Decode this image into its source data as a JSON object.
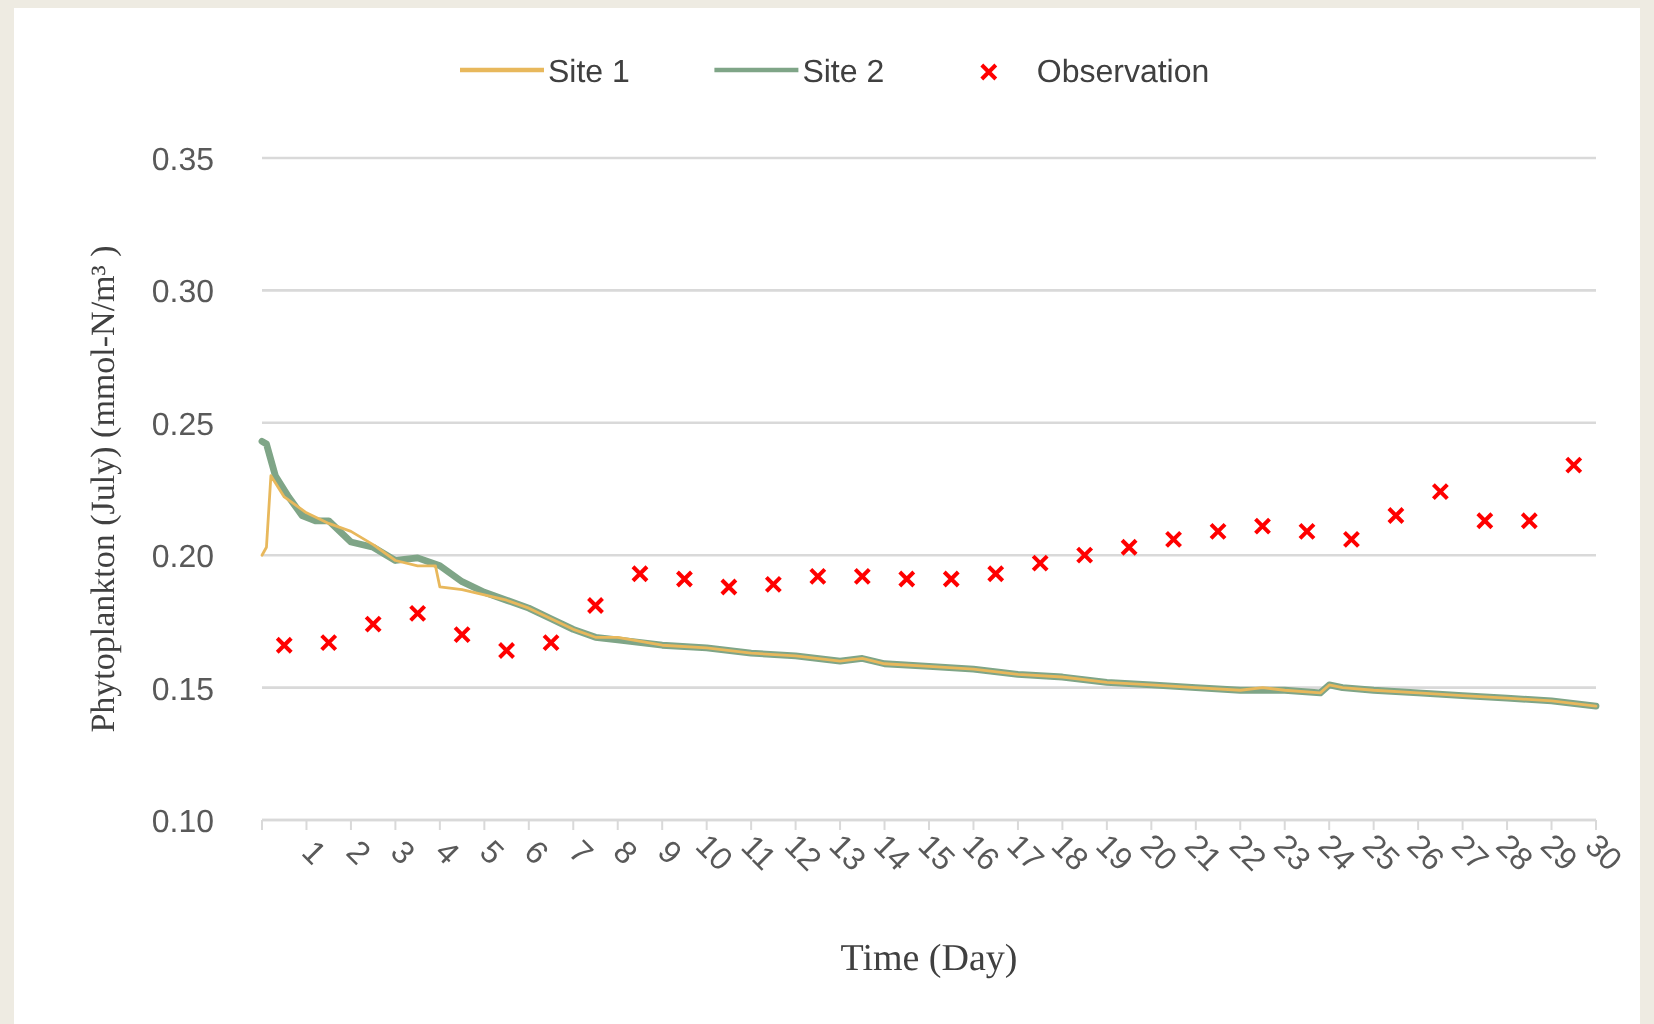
{
  "chart_data": {
    "type": "line",
    "xlabel": "Time (Day)",
    "ylabel": "Phytoplankton (July) (mmol-N/m³ )",
    "xlim": [
      0,
      30
    ],
    "xticks": [
      {
        "value": 0,
        "label": null
      },
      1,
      2,
      3,
      4,
      5,
      6,
      7,
      8,
      9,
      10,
      11,
      12,
      13,
      14,
      15,
      16,
      17,
      18,
      19,
      20,
      21,
      22,
      23,
      24,
      25,
      26,
      27,
      28,
      29,
      30
    ],
    "ylim": [
      0.1,
      0.35
    ],
    "yticks": [
      {
        "value": 0.1,
        "label": "0.10"
      },
      {
        "value": 0.15,
        "label": "0.15"
      },
      {
        "value": 0.2,
        "label": "0.20"
      },
      {
        "value": 0.25,
        "label": "0.25"
      },
      {
        "value": 0.3,
        "label": "0.30"
      },
      {
        "value": 0.35,
        "label": "0.35"
      }
    ],
    "grid": "y",
    "legend": "top",
    "series": [
      {
        "name": "Site 1",
        "color": "#e8b85c",
        "marker": "none",
        "x": [
          0,
          0.1,
          0.2,
          0.5,
          1,
          1.5,
          2,
          2.5,
          3,
          3.5,
          3.9,
          4,
          4.5,
          5,
          5.5,
          6,
          6.5,
          7,
          7.5,
          8,
          9,
          10,
          11,
          12,
          13,
          13.5,
          14,
          15,
          16,
          17,
          18,
          19,
          20,
          21,
          22,
          22.5,
          23,
          23.8,
          24,
          24.3,
          25,
          26,
          27,
          28,
          29,
          30
        ],
        "values": [
          0.2,
          0.203,
          0.23,
          0.222,
          0.216,
          0.212,
          0.209,
          0.204,
          0.198,
          0.196,
          0.196,
          0.188,
          0.187,
          0.185,
          0.183,
          0.18,
          0.176,
          0.172,
          0.169,
          0.169,
          0.166,
          0.165,
          0.163,
          0.162,
          0.16,
          0.161,
          0.159,
          0.158,
          0.157,
          0.155,
          0.154,
          0.152,
          0.151,
          0.15,
          0.149,
          0.15,
          0.149,
          0.148,
          0.151,
          0.15,
          0.149,
          0.148,
          0.147,
          0.146,
          0.145,
          0.143
        ]
      },
      {
        "name": "Site 2",
        "color": "#7fa587",
        "marker": "none",
        "x": [
          0,
          0.1,
          0.3,
          0.6,
          0.9,
          1.2,
          1.5,
          2,
          2.5,
          3,
          3.5,
          4,
          4.5,
          5,
          5.5,
          6,
          6.5,
          7,
          7.5,
          8,
          9,
          10,
          11,
          12,
          13,
          13.5,
          14,
          15,
          16,
          17,
          18,
          19,
          20,
          21,
          22,
          23,
          23.8,
          24,
          24.3,
          25,
          26,
          27,
          28,
          29,
          30
        ],
        "values": [
          0.243,
          0.242,
          0.23,
          0.222,
          0.215,
          0.213,
          0.213,
          0.205,
          0.203,
          0.198,
          0.199,
          0.196,
          0.19,
          0.186,
          0.183,
          0.18,
          0.176,
          0.172,
          0.169,
          0.168,
          0.166,
          0.165,
          0.163,
          0.162,
          0.16,
          0.161,
          0.159,
          0.158,
          0.157,
          0.155,
          0.154,
          0.152,
          0.151,
          0.15,
          0.149,
          0.149,
          0.148,
          0.151,
          0.15,
          0.149,
          0.148,
          0.147,
          0.146,
          0.145,
          0.143
        ]
      },
      {
        "name": "Observation",
        "color": "#ff0000",
        "type": "scatter",
        "marker": "cross",
        "x": [
          0.5,
          1.5,
          2.5,
          3.5,
          4.5,
          5.5,
          6.5,
          7.5,
          8.5,
          9.5,
          10.5,
          11.5,
          12.5,
          13.5,
          14.5,
          15.5,
          16.5,
          17.5,
          18.5,
          19.5,
          20.5,
          21.5,
          22.5,
          23.5,
          24.5,
          25.5,
          26.5,
          27.5,
          28.5,
          29.5
        ],
        "values": [
          0.166,
          0.167,
          0.174,
          0.178,
          0.17,
          0.164,
          0.167,
          0.181,
          0.193,
          0.191,
          0.188,
          0.189,
          0.192,
          0.192,
          0.191,
          0.191,
          0.193,
          0.197,
          0.2,
          0.203,
          0.206,
          0.209,
          0.211,
          0.209,
          0.206,
          0.215,
          0.224,
          0.213,
          0.213,
          0.234
        ]
      }
    ]
  }
}
